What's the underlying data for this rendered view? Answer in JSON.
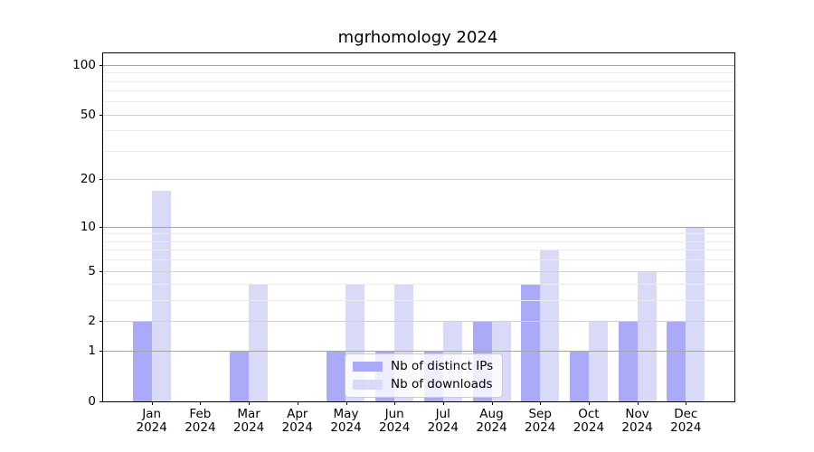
{
  "chart_data": {
    "type": "bar",
    "title": "mgrhomology 2024",
    "x_ticks": [
      {
        "month": "Jan",
        "year": "2024"
      },
      {
        "month": "Feb",
        "year": "2024"
      },
      {
        "month": "Mar",
        "year": "2024"
      },
      {
        "month": "Apr",
        "year": "2024"
      },
      {
        "month": "May",
        "year": "2024"
      },
      {
        "month": "Jun",
        "year": "2024"
      },
      {
        "month": "Jul",
        "year": "2024"
      },
      {
        "month": "Aug",
        "year": "2024"
      },
      {
        "month": "Sep",
        "year": "2024"
      },
      {
        "month": "Oct",
        "year": "2024"
      },
      {
        "month": "Nov",
        "year": "2024"
      },
      {
        "month": "Dec",
        "year": "2024"
      }
    ],
    "series": [
      {
        "key": "distinct-ips",
        "name": "Nb of distinct IPs",
        "color": "#aaaaf8",
        "values": [
          2,
          0,
          1,
          0,
          1,
          1,
          1,
          2,
          4,
          1,
          2,
          2
        ]
      },
      {
        "key": "downloads",
        "name": "Nb of downloads",
        "color": "#d9d9f8",
        "values": [
          17,
          0,
          4,
          0,
          4,
          4,
          2,
          2,
          7,
          2,
          5,
          10
        ]
      }
    ],
    "y_axis": {
      "scale": "log1p",
      "tick_labels": [
        "0",
        "1",
        "2",
        "5",
        "10",
        "20",
        "50",
        "100"
      ],
      "tick_values": [
        0,
        1,
        2,
        5,
        10,
        20,
        50,
        100
      ],
      "major_grid_values": [
        1,
        10,
        100
      ],
      "mid_grid_values": [
        2,
        5,
        20,
        50
      ],
      "minor_grid_values": [
        3,
        4,
        6,
        7,
        8,
        9,
        30,
        40,
        60,
        70,
        80,
        90
      ],
      "range_max": 117
    },
    "grid": "horizontal",
    "legend_entries": [
      "Nb of distinct IPs",
      "Nb of downloads"
    ]
  }
}
